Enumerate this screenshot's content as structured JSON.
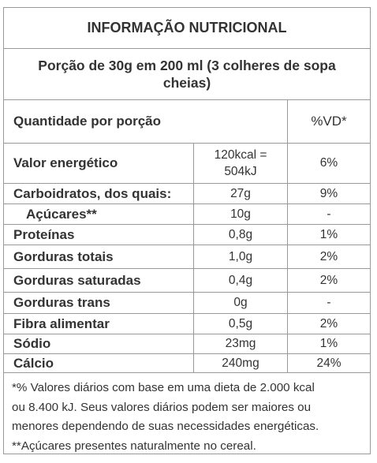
{
  "title": "INFORMAÇÃO NUTRICIONAL",
  "portion": "Porção  de 30g em 200 ml (3 colheres de sopa cheias)",
  "header": {
    "label": "Quantidade por porção",
    "dv": "%VD*"
  },
  "rows": [
    {
      "name": "Valor energético",
      "amount_line1": "120kcal =",
      "amount_line2": "504kJ",
      "dv": "6%"
    },
    {
      "name": "Carboidratos, dos quais:",
      "amount": "27g",
      "dv": "9%"
    },
    {
      "name": "Açúcares**",
      "amount": "10g",
      "dv": "-"
    },
    {
      "name": "Proteínas",
      "amount": "0,8g",
      "dv": "1%"
    },
    {
      "name": "Gorduras totais",
      "amount": "1,0g",
      "dv": "2%"
    },
    {
      "name": "Gorduras saturadas",
      "amount": "0,4g",
      "dv": "2%"
    },
    {
      "name": "Gorduras trans",
      "amount": "0g",
      "dv": "-"
    },
    {
      "name": "Fibra alimentar",
      "amount": "0,5g",
      "dv": "2%"
    },
    {
      "name": "Sódio",
      "amount": "23mg",
      "dv": "1%"
    },
    {
      "name": "Cálcio",
      "amount": "240mg",
      "dv": "24%"
    }
  ],
  "footnote": {
    "line1": "*% Valores diários com base em uma dieta de 2.000 kcal",
    "line2": "ou 8.400 kJ. Seus valores diários podem ser maiores ou",
    "line3": "menores dependendo de suas necessidades energéticas.",
    "line4": "**Açúcares presentes naturalmente no cereal."
  }
}
